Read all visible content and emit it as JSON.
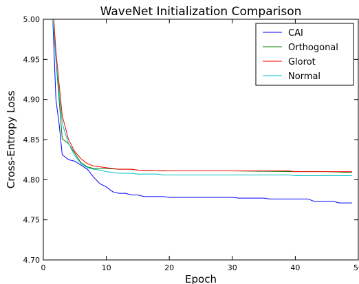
{
  "chart_data": {
    "type": "line",
    "title": "WaveNet Initialization Comparison",
    "xlabel": "Epoch",
    "ylabel": "Cross-Entropy Loss",
    "xlim": [
      0,
      50
    ],
    "ylim": [
      4.7,
      5.0
    ],
    "xticks": [
      "0",
      "10",
      "20",
      "30",
      "40",
      "50"
    ],
    "yticks": [
      "4.70",
      "4.75",
      "4.80",
      "4.85",
      "4.90",
      "4.95",
      "5.00"
    ],
    "grid": false,
    "legend_position": "top-right",
    "series": [
      {
        "name": "CAI",
        "color": "#0000ff",
        "x": [
          1,
          1.5,
          2,
          2.5,
          3,
          4,
          5,
          6,
          7,
          8,
          9,
          10,
          11,
          12,
          13,
          14,
          15,
          16,
          17,
          18,
          19,
          20,
          25,
          30,
          31,
          35,
          36,
          40,
          41,
          42,
          43,
          44,
          45,
          46,
          47,
          48,
          49
        ],
        "y": [
          5.05,
          5.0,
          4.9,
          4.87,
          4.831,
          4.825,
          4.823,
          4.818,
          4.813,
          4.803,
          4.795,
          4.791,
          4.785,
          4.783,
          4.783,
          4.781,
          4.781,
          4.779,
          4.779,
          4.779,
          4.779,
          4.778,
          4.778,
          4.778,
          4.777,
          4.777,
          4.776,
          4.776,
          4.776,
          4.776,
          4.773,
          4.773,
          4.773,
          4.773,
          4.771,
          4.771,
          4.771
        ]
      },
      {
        "name": "Orthogonal",
        "color": "#008000",
        "x": [
          1,
          1.5,
          2,
          2.5,
          3,
          4,
          5,
          6,
          7,
          8,
          9,
          10,
          12,
          14,
          15,
          20,
          30,
          40,
          45,
          49
        ],
        "y": [
          5.05,
          5.0,
          4.95,
          4.9,
          4.851,
          4.845,
          4.833,
          4.821,
          4.816,
          4.814,
          4.814,
          4.814,
          4.813,
          4.813,
          4.812,
          4.811,
          4.811,
          4.81,
          4.81,
          4.809
        ]
      },
      {
        "name": "Glorot",
        "color": "#ff0000",
        "x": [
          1,
          1.5,
          2,
          2.5,
          3,
          4,
          5,
          6,
          7,
          8,
          9,
          10,
          12,
          14,
          15,
          20,
          30,
          39,
          40,
          45,
          49
        ],
        "y": [
          5.05,
          5.02,
          4.96,
          4.92,
          4.88,
          4.85,
          4.835,
          4.826,
          4.82,
          4.817,
          4.816,
          4.815,
          4.813,
          4.813,
          4.812,
          4.811,
          4.811,
          4.811,
          4.81,
          4.81,
          4.81
        ]
      },
      {
        "name": "Normal",
        "color": "#00bfbf",
        "x": [
          1,
          1.5,
          2,
          2.5,
          3,
          4,
          5,
          6,
          7,
          8,
          9,
          10,
          12,
          14,
          15,
          18,
          19,
          20,
          30,
          39,
          40,
          45,
          49
        ],
        "y": [
          5.05,
          5.0,
          4.95,
          4.91,
          4.87,
          4.845,
          4.83,
          4.82,
          4.815,
          4.813,
          4.812,
          4.81,
          4.808,
          4.808,
          4.807,
          4.807,
          4.806,
          4.806,
          4.806,
          4.806,
          4.805,
          4.805,
          4.805
        ]
      }
    ]
  }
}
